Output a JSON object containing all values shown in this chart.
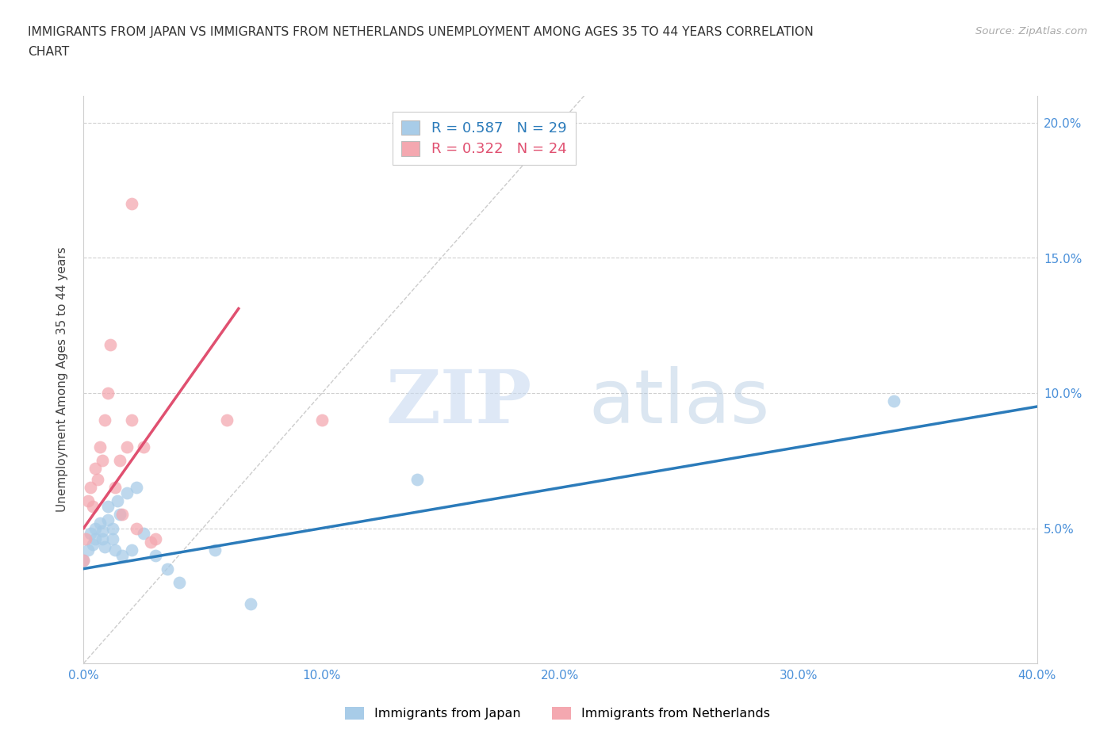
{
  "title_line1": "IMMIGRANTS FROM JAPAN VS IMMIGRANTS FROM NETHERLANDS UNEMPLOYMENT AMONG AGES 35 TO 44 YEARS CORRELATION",
  "title_line2": "CHART",
  "source": "Source: ZipAtlas.com",
  "ylabel": "Unemployment Among Ages 35 to 44 years",
  "xlim": [
    0.0,
    0.4
  ],
  "ylim": [
    0.0,
    0.21
  ],
  "japan_color": "#a8cce8",
  "japan_color_line": "#2b7bba",
  "netherlands_color": "#f4a8b0",
  "netherlands_color_line": "#e05070",
  "diag_color": "#cccccc",
  "R_japan": "0.587",
  "N_japan": "29",
  "R_netherlands": "0.322",
  "N_netherlands": "24",
  "japan_x": [
    0.0,
    0.002,
    0.003,
    0.004,
    0.005,
    0.005,
    0.007,
    0.008,
    0.008,
    0.009,
    0.01,
    0.01,
    0.012,
    0.012,
    0.013,
    0.014,
    0.015,
    0.016,
    0.018,
    0.02,
    0.022,
    0.025,
    0.03,
    0.035,
    0.04,
    0.055,
    0.07,
    0.14,
    0.34
  ],
  "japan_y": [
    0.038,
    0.042,
    0.048,
    0.044,
    0.05,
    0.046,
    0.052,
    0.049,
    0.046,
    0.043,
    0.058,
    0.053,
    0.05,
    0.046,
    0.042,
    0.06,
    0.055,
    0.04,
    0.063,
    0.042,
    0.065,
    0.048,
    0.04,
    0.035,
    0.03,
    0.042,
    0.022,
    0.068,
    0.097
  ],
  "netherlands_x": [
    0.0,
    0.001,
    0.002,
    0.003,
    0.004,
    0.005,
    0.006,
    0.007,
    0.008,
    0.009,
    0.01,
    0.011,
    0.013,
    0.015,
    0.016,
    0.018,
    0.02,
    0.022,
    0.025,
    0.028,
    0.03,
    0.06,
    0.1,
    0.02
  ],
  "netherlands_y": [
    0.038,
    0.046,
    0.06,
    0.065,
    0.058,
    0.072,
    0.068,
    0.08,
    0.075,
    0.09,
    0.1,
    0.118,
    0.065,
    0.075,
    0.055,
    0.08,
    0.09,
    0.05,
    0.08,
    0.045,
    0.046,
    0.09,
    0.09,
    0.17
  ],
  "watermark_zip": "ZIP",
  "watermark_atlas": "atlas",
  "legend_japan": "Immigrants from Japan",
  "legend_netherlands": "Immigrants from Netherlands",
  "background_color": "#ffffff",
  "grid_color": "#d0d0d0",
  "tick_color": "#4a90d9",
  "spine_color": "#d0d0d0"
}
